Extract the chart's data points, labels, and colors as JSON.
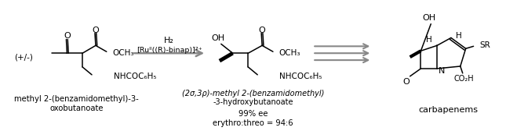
{
  "bg_color": "#ffffff",
  "line_color": "#000000",
  "arrow_color": "#888888",
  "fig_width": 6.45,
  "fig_height": 1.68,
  "dpi": 100,
  "label1_line1": "methyl 2-(benzamidomethyl)-3-",
  "label1_line2": "oxobutanoate",
  "label2_line1": "(2S,3R)-methyl 2-(benzamidomethyl)",
  "label2_line2": "-3-hydroxybutanoate",
  "label3": "99% ee",
  "label4": "erythro:threo = 94:6",
  "label5": "carbapenems",
  "plusminus": "(+/-)"
}
